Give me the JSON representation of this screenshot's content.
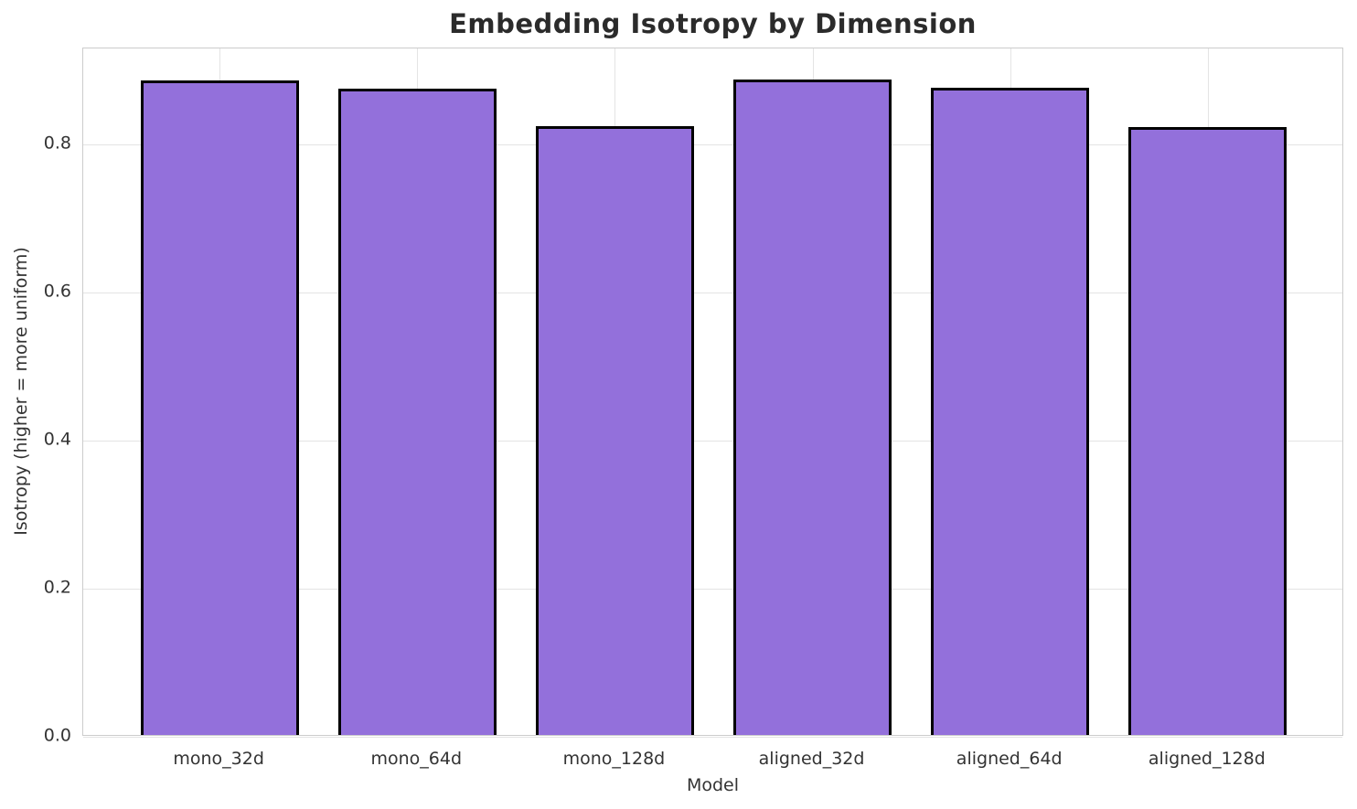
{
  "figure": {
    "background": "#ffffff"
  },
  "chart_data": {
    "type": "bar",
    "title": "Embedding Isotropy by Dimension",
    "xlabel": "Model",
    "ylabel": "Isotropy (higher = more uniform)",
    "categories": [
      "mono_32d",
      "mono_64d",
      "mono_128d",
      "aligned_32d",
      "aligned_64d",
      "aligned_128d"
    ],
    "values": [
      0.884,
      0.873,
      0.822,
      0.885,
      0.874,
      0.821
    ],
    "ylim": [
      0,
      0.93
    ],
    "xlim": [
      -0.69,
      5.69
    ],
    "ytick_labels": [
      "0.0",
      "0.2",
      "0.4",
      "0.6",
      "0.8"
    ],
    "ytick_values": [
      0.0,
      0.2,
      0.4,
      0.6,
      0.8
    ],
    "bar_width_frac": 0.8,
    "grid": "on",
    "legend": "none",
    "colors": {
      "bar_fill": "#9370DB",
      "bar_edge": "#000000",
      "grid": "#e4e4e4",
      "spine": "#cccccc",
      "title_text": "#2b2b2b",
      "tick_text": "#333333",
      "background": "#ffffff"
    }
  }
}
